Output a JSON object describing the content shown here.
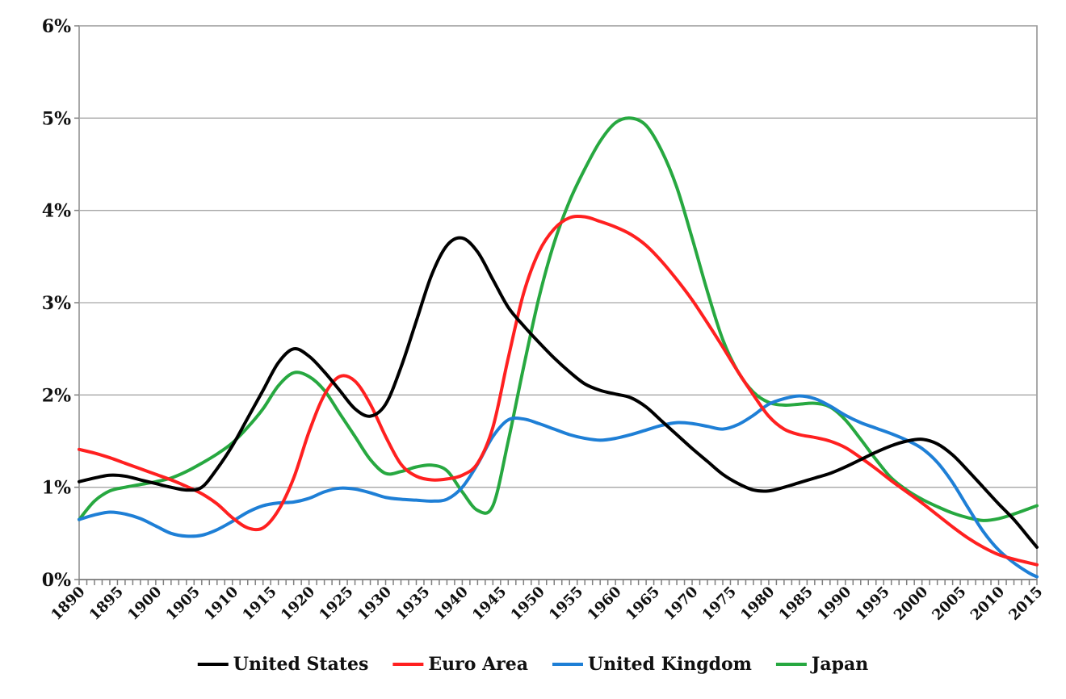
{
  "chart_data": {
    "type": "line",
    "title": "",
    "xlabel": "",
    "ylabel": "",
    "xlim": [
      1890,
      2015
    ],
    "ylim": [
      0,
      6
    ],
    "grid": true,
    "legend_position": "bottom",
    "y_ticks": [
      {
        "value": 0,
        "label": "0%"
      },
      {
        "value": 1,
        "label": "1%"
      },
      {
        "value": 2,
        "label": "2%"
      },
      {
        "value": 3,
        "label": "3%"
      },
      {
        "value": 4,
        "label": "4%"
      },
      {
        "value": 5,
        "label": "5%"
      },
      {
        "value": 6,
        "label": "6%"
      }
    ],
    "x_ticks": [
      "1890",
      "1895",
      "1900",
      "1905",
      "1910",
      "1915",
      "1920",
      "1925",
      "1930",
      "1935",
      "1940",
      "1945",
      "1950",
      "1955",
      "1960",
      "1965",
      "1970",
      "1975",
      "1980",
      "1985",
      "1990",
      "1995",
      "2000",
      "2005",
      "2010",
      "2015"
    ],
    "x": [
      1890,
      1892,
      1894,
      1896,
      1898,
      1900,
      1902,
      1904,
      1906,
      1908,
      1910,
      1912,
      1914,
      1916,
      1918,
      1920,
      1922,
      1924,
      1926,
      1928,
      1930,
      1932,
      1934,
      1936,
      1938,
      1940,
      1942,
      1944,
      1946,
      1948,
      1950,
      1952,
      1954,
      1956,
      1958,
      1960,
      1962,
      1964,
      1966,
      1968,
      1970,
      1972,
      1974,
      1976,
      1978,
      1980,
      1982,
      1984,
      1986,
      1988,
      1990,
      1992,
      1994,
      1996,
      1998,
      2000,
      2002,
      2004,
      2006,
      2008,
      2010,
      2012,
      2014,
      2015
    ],
    "series": [
      {
        "name": "United States",
        "color": "#000000",
        "values": [
          1.06,
          1.1,
          1.13,
          1.12,
          1.08,
          1.04,
          1.0,
          0.97,
          1.0,
          1.2,
          1.45,
          1.75,
          2.05,
          2.35,
          2.5,
          2.42,
          2.25,
          2.05,
          1.85,
          1.77,
          1.9,
          2.3,
          2.8,
          3.3,
          3.62,
          3.7,
          3.55,
          3.25,
          2.95,
          2.75,
          2.57,
          2.4,
          2.25,
          2.12,
          2.05,
          2.01,
          1.97,
          1.87,
          1.72,
          1.57,
          1.42,
          1.28,
          1.14,
          1.04,
          0.97,
          0.96,
          1.0,
          1.05,
          1.1,
          1.15,
          1.22,
          1.3,
          1.38,
          1.45,
          1.5,
          1.52,
          1.47,
          1.35,
          1.18,
          1.0,
          0.82,
          0.65,
          0.45,
          0.35
        ]
      },
      {
        "name": "Euro Area",
        "color": "#ff2020",
        "values": [
          1.41,
          1.37,
          1.32,
          1.26,
          1.2,
          1.14,
          1.08,
          1.01,
          0.93,
          0.82,
          0.67,
          0.56,
          0.56,
          0.75,
          1.1,
          1.6,
          2.0,
          2.2,
          2.15,
          1.9,
          1.55,
          1.25,
          1.12,
          1.08,
          1.09,
          1.13,
          1.26,
          1.65,
          2.4,
          3.1,
          3.55,
          3.8,
          3.92,
          3.93,
          3.88,
          3.82,
          3.74,
          3.62,
          3.45,
          3.25,
          3.03,
          2.78,
          2.52,
          2.25,
          2.0,
          1.77,
          1.63,
          1.57,
          1.54,
          1.5,
          1.43,
          1.32,
          1.2,
          1.07,
          0.95,
          0.83,
          0.7,
          0.57,
          0.45,
          0.35,
          0.27,
          0.22,
          0.18,
          0.16
        ]
      },
      {
        "name": "United Kingdom",
        "color": "#1e7fd6",
        "values": [
          0.65,
          0.7,
          0.73,
          0.71,
          0.66,
          0.58,
          0.5,
          0.47,
          0.48,
          0.54,
          0.63,
          0.73,
          0.8,
          0.83,
          0.84,
          0.88,
          0.95,
          0.99,
          0.98,
          0.94,
          0.89,
          0.87,
          0.86,
          0.85,
          0.87,
          1.0,
          1.25,
          1.55,
          1.73,
          1.74,
          1.69,
          1.63,
          1.57,
          1.53,
          1.51,
          1.53,
          1.57,
          1.62,
          1.67,
          1.7,
          1.69,
          1.66,
          1.63,
          1.68,
          1.78,
          1.9,
          1.96,
          1.99,
          1.96,
          1.88,
          1.78,
          1.7,
          1.64,
          1.58,
          1.51,
          1.42,
          1.27,
          1.05,
          0.78,
          0.52,
          0.32,
          0.18,
          0.07,
          0.03
        ]
      },
      {
        "name": "Japan",
        "color": "#27a840",
        "values": [
          0.65,
          0.85,
          0.96,
          1.0,
          1.03,
          1.06,
          1.1,
          1.17,
          1.26,
          1.36,
          1.48,
          1.65,
          1.85,
          2.1,
          2.24,
          2.2,
          2.05,
          1.8,
          1.55,
          1.3,
          1.15,
          1.17,
          1.22,
          1.24,
          1.18,
          0.95,
          0.75,
          0.8,
          1.5,
          2.3,
          3.05,
          3.65,
          4.1,
          4.45,
          4.75,
          4.95,
          5.0,
          4.92,
          4.65,
          4.25,
          3.7,
          3.12,
          2.6,
          2.25,
          2.03,
          1.92,
          1.89,
          1.9,
          1.91,
          1.87,
          1.73,
          1.52,
          1.3,
          1.1,
          0.97,
          0.87,
          0.79,
          0.72,
          0.67,
          0.64,
          0.66,
          0.71,
          0.77,
          0.8
        ]
      }
    ]
  }
}
